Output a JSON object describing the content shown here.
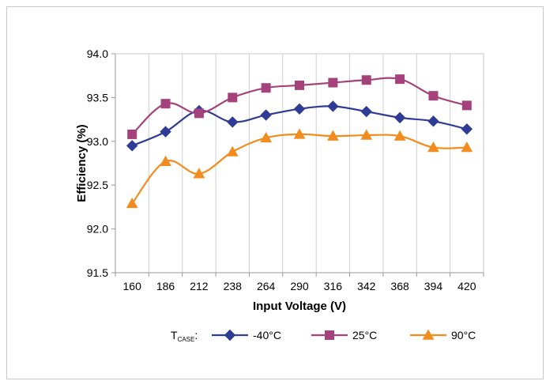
{
  "chart_data": {
    "type": "line",
    "title": "",
    "xlabel": "Input Voltage (V)",
    "ylabel": "Efficiency (%)",
    "categories": [
      "160",
      "186",
      "212",
      "238",
      "264",
      "290",
      "316",
      "342",
      "368",
      "394",
      "420"
    ],
    "ylim": [
      91.5,
      94.0
    ],
    "yticks": [
      "91.5",
      "92.0",
      "92.5",
      "93.0",
      "93.5",
      "94.0"
    ],
    "grid": "vertical",
    "legend_position": "bottom",
    "legend_title_main": "T",
    "legend_title_sub": "CASE",
    "legend_title_suffix": ":",
    "series": [
      {
        "name": "-40°C",
        "color": "#2E3C96",
        "marker": "diamond",
        "values": [
          92.95,
          93.11,
          93.35,
          93.22,
          93.3,
          93.37,
          93.4,
          93.34,
          93.27,
          93.23,
          93.14
        ]
      },
      {
        "name": "25°C",
        "color": "#A6427B",
        "marker": "square",
        "values": [
          93.08,
          93.43,
          93.32,
          93.5,
          93.61,
          93.64,
          93.67,
          93.7,
          93.71,
          93.52,
          93.41
        ]
      },
      {
        "name": "90°C",
        "color": "#F28C1E",
        "marker": "triangle",
        "values": [
          92.29,
          92.77,
          92.63,
          92.88,
          93.04,
          93.08,
          93.06,
          93.07,
          93.06,
          92.93,
          92.93
        ]
      }
    ]
  }
}
